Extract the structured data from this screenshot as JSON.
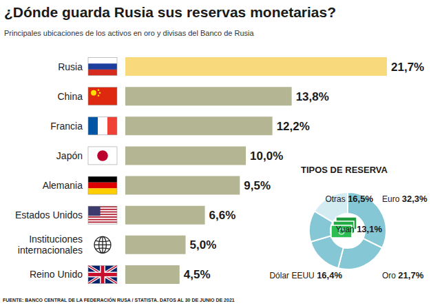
{
  "chart_data": [
    {
      "type": "bar",
      "title": "¿Dónde guarda Rusia sus reservas monetarias?",
      "subtitle": "Principales ubicaciones de los activos en oro y divisas del Banco de Rusia",
      "source": "FUENTE: BANCO CENTRAL DE LA FEDERACIÓN RUSA / STATISTA. DATOS AL 30 DE JUNIO DE 2021",
      "orientation": "horizontal",
      "categories": [
        "Rusia",
        "China",
        "Francia",
        "Japón",
        "Alemania",
        "Estados Unidos",
        "Instituciones internacionales",
        "Reino Unido"
      ],
      "values": [
        21.7,
        13.8,
        12.2,
        10.0,
        9.5,
        6.6,
        5.0,
        4.5
      ],
      "value_labels": [
        "21,7%",
        "13,8%",
        "12,2%",
        "10,0%",
        "9,5%",
        "6,6%",
        "5,0%",
        "4,5%"
      ],
      "colors": [
        "#f8d97c",
        "#b4b592",
        "#b4b592",
        "#b4b592",
        "#b4b592",
        "#b4b592",
        "#b4b592",
        "#b4b592"
      ],
      "xlim": [
        0,
        21.7
      ],
      "data_labels": true,
      "tick_labels": "y"
    },
    {
      "type": "pie",
      "title": "TIPOS DE RESERVA",
      "categories": [
        "Euro",
        "Oro",
        "Dólar EEUU",
        "Yuan",
        "Otras"
      ],
      "values": [
        32.3,
        21.7,
        16.4,
        13.1,
        16.5
      ],
      "value_labels": [
        "32,3%",
        "21,7%",
        "16,4%",
        "13,1%",
        "16,5%"
      ],
      "colors": [
        "#85c7d4",
        "#85c7d4",
        "#85c7d4",
        "#85c7d4",
        "#d3ecf1"
      ],
      "data_labels": true
    }
  ]
}
